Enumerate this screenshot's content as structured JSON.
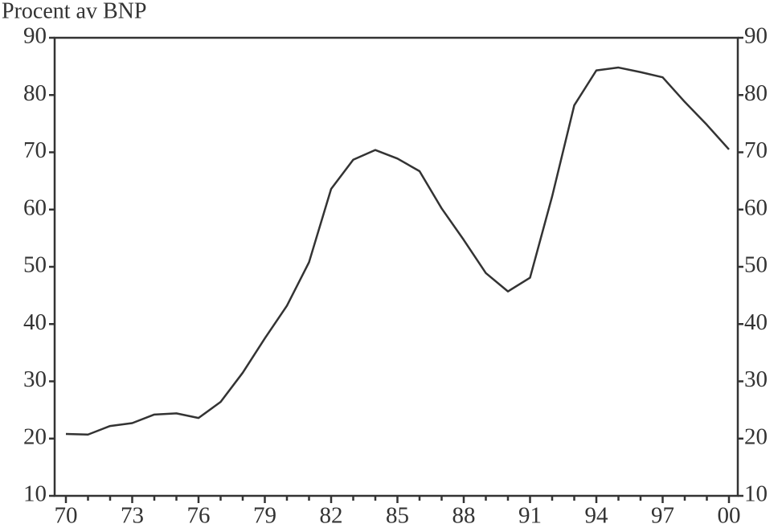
{
  "chart_data": {
    "type": "line",
    "title": "Procent av BNP",
    "categories": [
      "70",
      null,
      null,
      "73",
      null,
      null,
      "76",
      null,
      null,
      "79",
      null,
      null,
      "82",
      null,
      null,
      "85",
      null,
      null,
      "88",
      null,
      null,
      "91",
      null,
      null,
      "94",
      null,
      null,
      "97",
      null,
      null,
      "00"
    ],
    "series": [
      {
        "color": "#333333",
        "values": [
          20.8,
          20.7,
          22.2,
          22.7,
          24.2,
          24.4,
          23.6,
          26.4,
          31.5,
          37.5,
          43.2,
          50.8,
          63.6,
          68.7,
          70.4,
          68.9,
          66.7,
          60.2,
          54.7,
          48.9,
          45.7,
          48.1,
          62.3,
          78.2,
          84.3,
          84.8,
          84.0,
          83.1,
          78.8,
          74.8,
          70.5
        ]
      }
    ],
    "ylim": [
      10,
      90
    ],
    "yticks": [
      10,
      20,
      30,
      40,
      50,
      60,
      70,
      80,
      90
    ],
    "grid": false
  }
}
